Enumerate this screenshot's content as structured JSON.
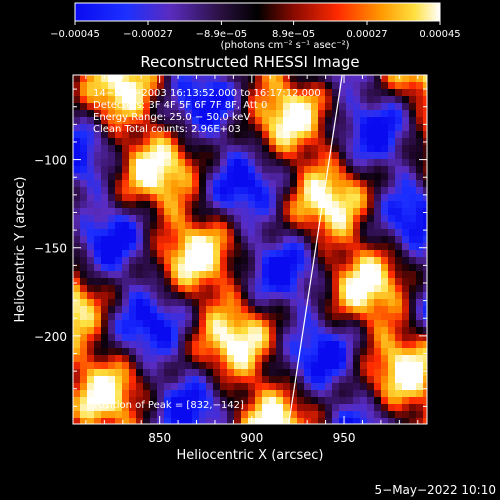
{
  "chart_data": {
    "type": "heatmap",
    "title": "Reconstructed RHESSI Image",
    "xlabel": "Heliocentric X (arcsec)",
    "ylabel": "Heliocentric Y (arcsec)",
    "xlim": [
      803,
      995
    ],
    "ylim": [
      -250,
      -52
    ],
    "x_ticks": [
      850,
      900,
      950
    ],
    "x_tick_labels": [
      "850",
      "900",
      "950"
    ],
    "y_ticks": [
      -100,
      -150,
      -200
    ],
    "y_tick_labels": [
      "−100",
      "−150",
      "−200"
    ],
    "colorbar": {
      "min": -0.00045,
      "max": 0.00045,
      "tick_values": [
        -0.00045,
        -0.00027,
        -8.9e-05,
        8.9e-05,
        0.00027,
        0.00045
      ],
      "tick_labels": [
        "−0.00045",
        "−0.00027",
        "−8.9e−05",
        "8.9e−05",
        "0.00027",
        "0.00045"
      ],
      "unit_label": "(photons cm⁻² s⁻¹ asec⁻²)"
    },
    "annotations": [
      "14−Sep−2003 16:13:52.000 to 16:17:12.000",
      "Detectors: 3F 4F 5F 6F 7F 8F, Att 0",
      "Energy Range: 25.0 − 50.0 keV",
      "Clean     Total counts: 2.96E+03"
    ],
    "peak_label": "Position of Peak = [832,−142]",
    "peak": [
      832,
      -142
    ],
    "limb_line": [
      [
        920,
        -250
      ],
      [
        949,
        -52
      ]
    ],
    "grid": false,
    "footer_date": "5−May−2022 10:10"
  }
}
